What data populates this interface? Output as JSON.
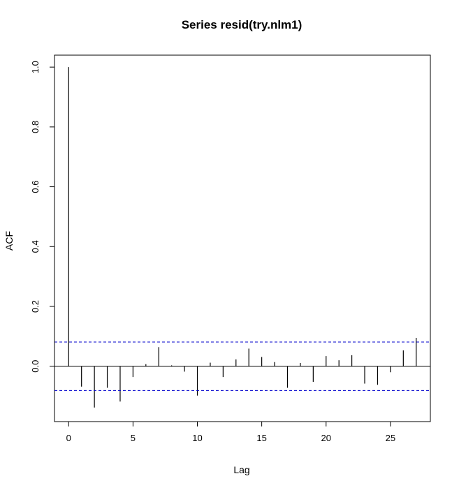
{
  "chart_data": {
    "type": "bar",
    "title": "Series  resid(try.nlm1)",
    "xlabel": "Lag",
    "ylabel": "ACF",
    "xlim": [
      -1.1,
      28.1
    ],
    "ylim": [
      -0.185,
      1.04
    ],
    "x_ticks": [
      0,
      5,
      10,
      15,
      20,
      25
    ],
    "y_ticks": [
      0.0,
      0.2,
      0.4,
      0.6,
      0.8,
      1.0
    ],
    "x_tick_labels": [
      "0",
      "5",
      "10",
      "15",
      "20",
      "25"
    ],
    "y_tick_labels": [
      "0.0",
      "0.2",
      "0.4",
      "0.6",
      "0.8",
      "1.0"
    ],
    "lags": [
      0,
      1,
      2,
      3,
      4,
      5,
      6,
      7,
      8,
      9,
      10,
      11,
      12,
      13,
      14,
      15,
      16,
      17,
      18,
      19,
      20,
      21,
      22,
      23,
      24,
      25,
      26,
      27
    ],
    "acf": [
      1.0,
      -0.068,
      -0.138,
      -0.072,
      -0.118,
      -0.036,
      0.007,
      0.064,
      0.003,
      -0.018,
      -0.098,
      0.012,
      -0.036,
      0.023,
      0.059,
      0.031,
      0.014,
      -0.072,
      0.011,
      -0.052,
      0.034,
      0.02,
      0.037,
      -0.058,
      -0.062,
      -0.02,
      0.053,
      0.095
    ],
    "confidence_bound": 0.081,
    "grid": false,
    "colors": {
      "bars": "#000000",
      "confidence": "#0000cc",
      "zero_line": "#000000"
    }
  }
}
